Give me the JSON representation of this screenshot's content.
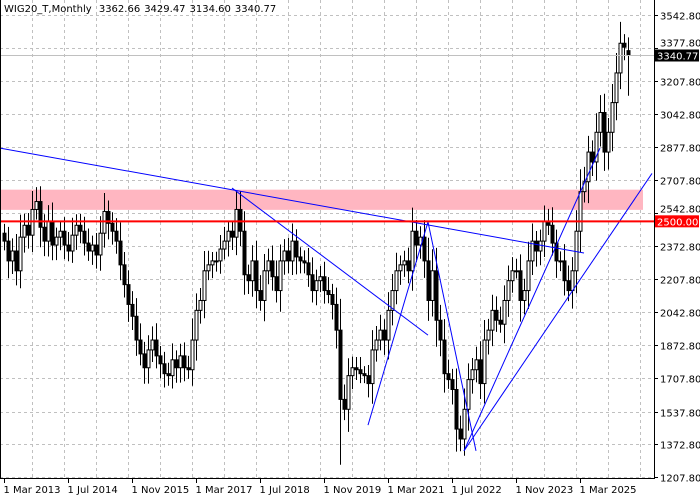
{
  "header": {
    "symbol": "WIG20_T,Monthly",
    "open": "3362.66",
    "high": "3429.47",
    "low": "3134.60",
    "close": "3340.77"
  },
  "chart_data": {
    "type": "candlestick",
    "start_month": "2013-03",
    "interval": "monthly",
    "close": [
      2400,
      2300,
      2350,
      2250,
      2420,
      2480,
      2430,
      2560,
      2600,
      2470,
      2400,
      2500,
      2380,
      2420,
      2450,
      2380,
      2350,
      2430,
      2480,
      2450,
      2390,
      2350,
      2380,
      2330,
      2440,
      2550,
      2490,
      2450,
      2400,
      2280,
      2180,
      2080,
      2020,
      1900,
      1830,
      1760,
      1850,
      1900,
      1820,
      1780,
      1730,
      1720,
      1800,
      1760,
      1820,
      1760,
      1750,
      1900,
      2050,
      2100,
      2250,
      2280,
      2300,
      2300,
      2360,
      2400,
      2450,
      2420,
      2560,
      2450,
      2230,
      2200,
      2300,
      2150,
      2100,
      2250,
      2300,
      2220,
      2150,
      2300,
      2350,
      2300,
      2400,
      2320,
      2300,
      2290,
      2230,
      2150,
      2200,
      2220,
      2150,
      2130,
      2080,
      1950,
      1600,
      1550,
      1720,
      1760,
      1750,
      1730,
      1720,
      1680,
      1850,
      1900,
      1950,
      1900,
      2050,
      2150,
      2250,
      2280,
      2300,
      2250,
      2450,
      2380,
      2420,
      2300,
      2100,
      2250,
      2000,
      1900,
      1730,
      1700,
      1650,
      1450,
      1400,
      1550,
      1700,
      1750,
      1800,
      1680,
      1900,
      1950,
      2050,
      2000,
      1980,
      2100,
      2200,
      2250,
      2250,
      2100,
      2150,
      2300,
      2400,
      2350,
      2400,
      2500,
      2480,
      2390,
      2300,
      2300,
      2200,
      2150,
      2250,
      2450,
      2650,
      2700,
      2850,
      2800,
      2950,
      3050,
      2850,
      2950,
      3100,
      3250,
      3400,
      3380,
      3340.77
    ],
    "last_bar": {
      "open": 3362.66,
      "high": 3429.47,
      "low": 3134.6,
      "close": 3340.77
    },
    "y_ticks": [
      "3542.80",
      "3377.80",
      "3207.80",
      "3042.80",
      "2877.80",
      "2707.80",
      "2542.80",
      "2372.80",
      "2207.80",
      "2042.80",
      "1872.80",
      "1707.80",
      "1537.80",
      "1372.80",
      "1207.80"
    ],
    "ylim": [
      1207.8,
      3542.8
    ],
    "x_ticks": [
      "1 Mar 2013",
      "1 Jul 2014",
      "1 Nov 2015",
      "1 Mar 2017",
      "1 Jul 2018",
      "1 Nov 2019",
      "1 Mar 2021",
      "1 Jul 2022",
      "1 Nov 2023",
      "1 Mar 2025"
    ],
    "x_tick_months": [
      "2013-03",
      "2014-07",
      "2015-11",
      "2017-03",
      "2018-07",
      "2019-11",
      "2021-03",
      "2022-07",
      "2023-11",
      "2025-03"
    ],
    "grid": true,
    "current_price": {
      "value": 3340.77,
      "label": "3340.77"
    },
    "level_line": {
      "value": 2500,
      "label": "2500.00",
      "color": "#ff0000"
    },
    "zone": {
      "from": 2558,
      "to": 2660,
      "color": "#ffb6c1"
    },
    "trendlines": [
      {
        "from": [
          "2013-02",
          2870
        ],
        "to": [
          "2025-04",
          2340
        ]
      },
      {
        "from": [
          "2017-12",
          2668
        ],
        "to": [
          "2022-01",
          1925
        ]
      },
      {
        "from": [
          "2020-10",
          1470
        ],
        "to": [
          "2022-01",
          2497
        ]
      },
      {
        "from": [
          "2022-01",
          2497
        ],
        "to": [
          "2023-01",
          1340
        ]
      },
      {
        "from": [
          "2022-10",
          1340
        ],
        "to": [
          "2025-08",
          2870
        ]
      },
      {
        "from": [
          "2022-10",
          1340
        ],
        "to": [
          "2026-09",
          2742
        ]
      }
    ],
    "trendline_color": "#0000ff"
  }
}
